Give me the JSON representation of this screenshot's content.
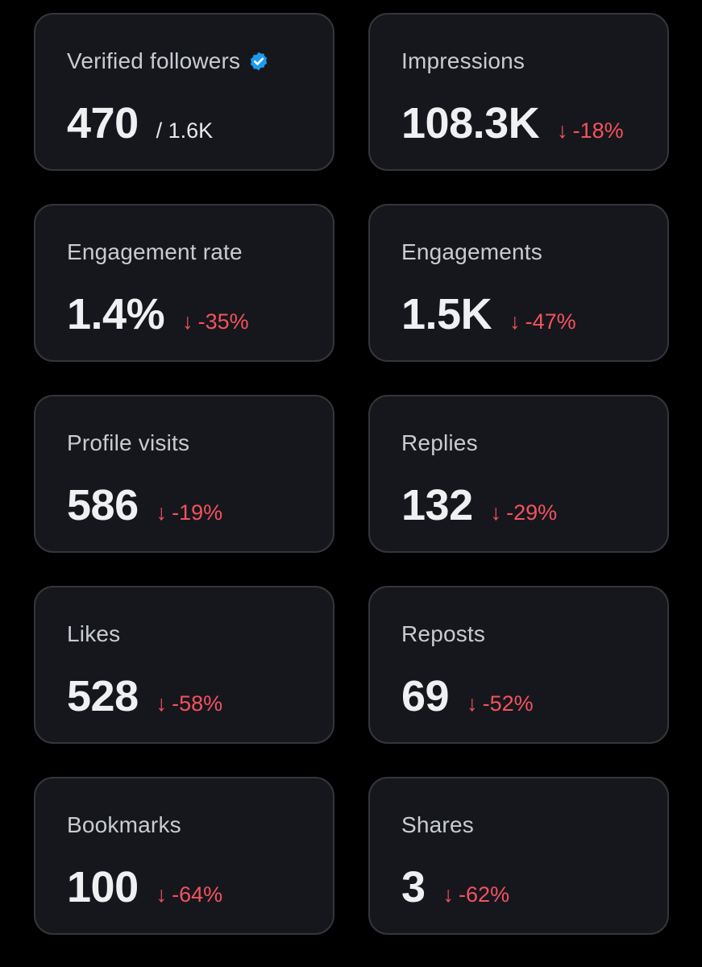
{
  "cards": [
    {
      "id": "verified-followers",
      "label": "Verified followers",
      "value": "470",
      "sub": "/ 1.6K",
      "verified_icon": "verified-badge-icon",
      "accent": "#1d9bf0"
    },
    {
      "id": "impressions",
      "label": "Impressions",
      "value": "108.3K",
      "change": "-18%",
      "direction_icon": "arrow-down-icon"
    },
    {
      "id": "engagement-rate",
      "label": "Engagement rate",
      "value": "1.4%",
      "change": "-35%",
      "direction_icon": "arrow-down-icon"
    },
    {
      "id": "engagements",
      "label": "Engagements",
      "value": "1.5K",
      "change": "-47%",
      "direction_icon": "arrow-down-icon"
    },
    {
      "id": "profile-visits",
      "label": "Profile visits",
      "value": "586",
      "change": "-19%",
      "direction_icon": "arrow-down-icon"
    },
    {
      "id": "replies",
      "label": "Replies",
      "value": "132",
      "change": "-29%",
      "direction_icon": "arrow-down-icon"
    },
    {
      "id": "likes",
      "label": "Likes",
      "value": "528",
      "change": "-58%",
      "direction_icon": "arrow-down-icon"
    },
    {
      "id": "reposts",
      "label": "Reposts",
      "value": "69",
      "change": "-52%",
      "direction_icon": "arrow-down-icon"
    },
    {
      "id": "bookmarks",
      "label": "Bookmarks",
      "value": "100",
      "change": "-64%",
      "direction_icon": "arrow-down-icon"
    },
    {
      "id": "shares",
      "label": "Shares",
      "value": "3",
      "change": "-62%",
      "direction_icon": "arrow-down-icon"
    }
  ],
  "colors": {
    "background": "#000000",
    "card_background": "#16171c",
    "card_border": "#34363b",
    "label": "#c8ccd1",
    "value": "#eef0f2",
    "negative_change": "#f4525f",
    "verified_badge": "#1d9bf0"
  }
}
